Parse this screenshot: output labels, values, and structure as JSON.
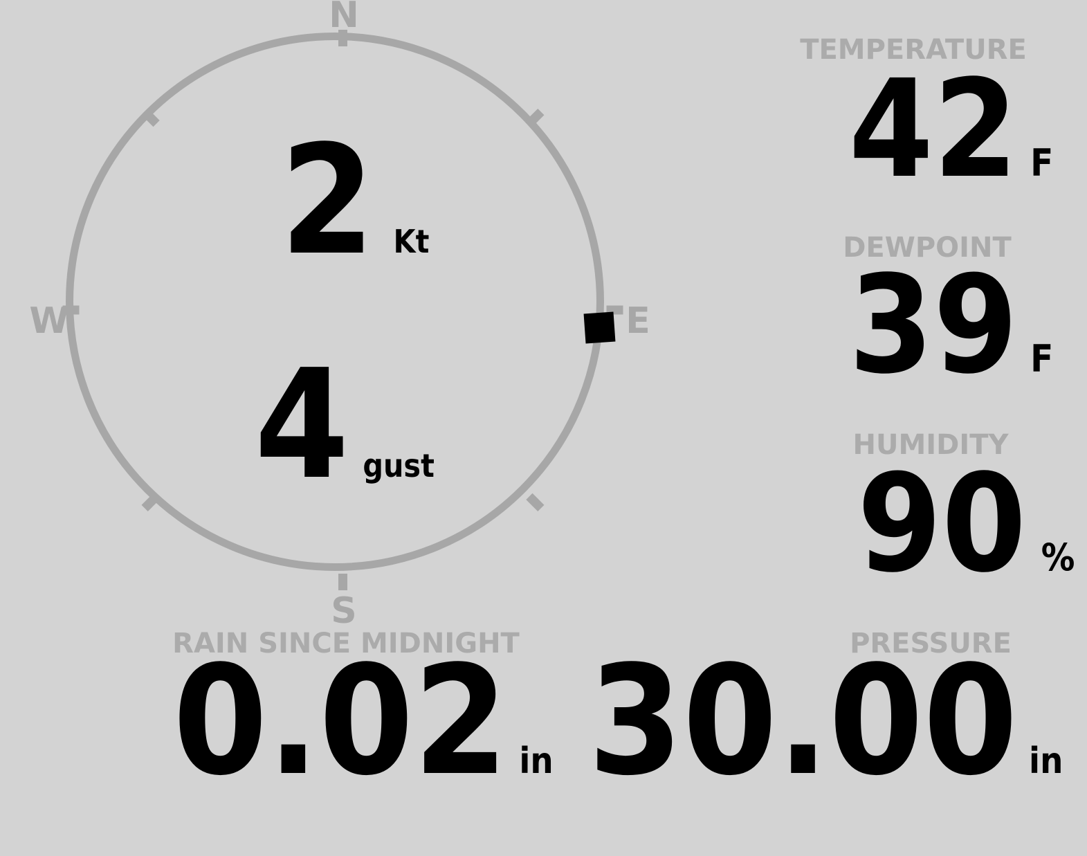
{
  "theme": {
    "background": "#d3d3d3",
    "gauge_color": "#a7a7a7",
    "label_color": "#ababab",
    "value_color": "#000000"
  },
  "wind_gauge": {
    "compass": {
      "north": "N",
      "east": "E",
      "south": "S",
      "west": "W"
    },
    "direction": "E",
    "speed": {
      "value": "2",
      "unit": "Kt"
    },
    "gust": {
      "value": "4",
      "unit": "gust"
    }
  },
  "readings": {
    "temperature": {
      "label": "TEMPERATURE",
      "value": "42",
      "unit": "F"
    },
    "dewpoint": {
      "label": "DEWPOINT",
      "value": "39",
      "unit": "F"
    },
    "humidity": {
      "label": "HUMIDITY",
      "value": "90",
      "unit": "%"
    },
    "rain": {
      "label": "RAIN SINCE MIDNIGHT",
      "value": "0.02",
      "unit": "in"
    },
    "pressure": {
      "label": "PRESSURE",
      "value": "30.00",
      "unit": "in"
    }
  }
}
